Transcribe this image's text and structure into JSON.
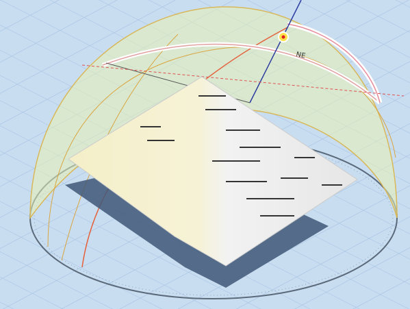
{
  "labels": {
    "compass": "NE"
  }
}
